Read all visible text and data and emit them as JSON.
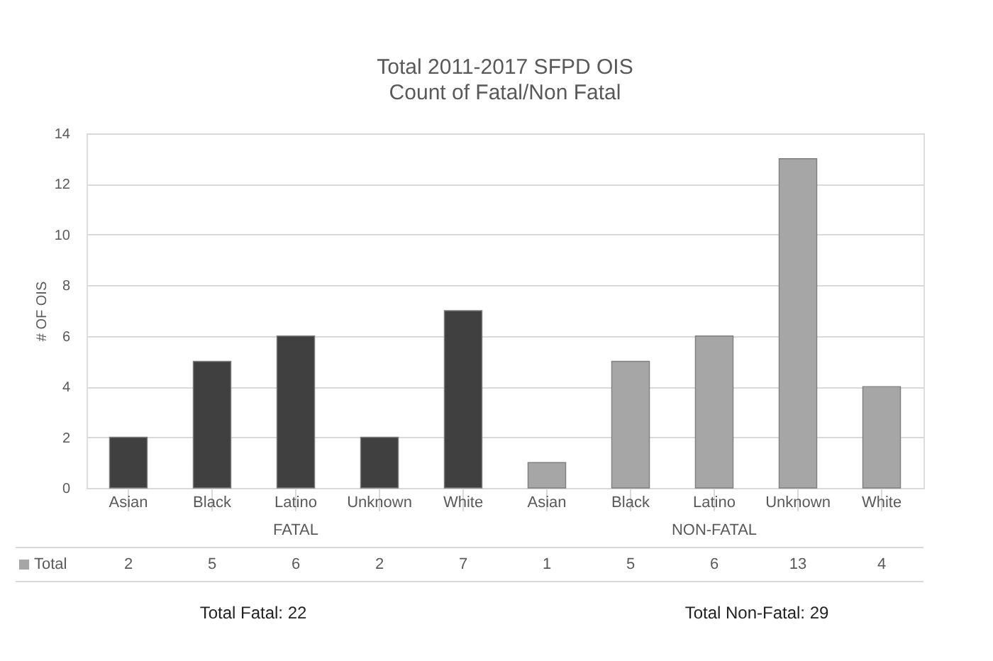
{
  "chart_data": {
    "type": "bar",
    "title": "Total 2011-2017 SFPD OIS",
    "subtitle": "Count of Fatal/Non Fatal",
    "ylabel": "# OF OIS",
    "categories": [
      "Asian",
      "Black",
      "Latino",
      "Unknown",
      "White",
      "Asian",
      "Black",
      "Latino",
      "Unknown",
      "White"
    ],
    "series": [
      {
        "name": "Total",
        "color": "#808080",
        "values": [
          2,
          5,
          6,
          2,
          7,
          1,
          5,
          6,
          13,
          4
        ]
      }
    ],
    "colors": [
      "#404040",
      "#404040",
      "#404040",
      "#404040",
      "#404040",
      "#a6a6a6",
      "#a6a6a6",
      "#a6a6a6",
      "#a6a6a6",
      "#a6a6a6"
    ],
    "ylim": [
      0,
      14
    ],
    "yticks": [
      0,
      2,
      4,
      6,
      8,
      10,
      12,
      14
    ],
    "grid": "y",
    "data_labels": true,
    "annotations": [
      "FATAL",
      "NON-FATAL",
      "Total Fatal: 22",
      "Total Non-Fatal: 29"
    ]
  }
}
